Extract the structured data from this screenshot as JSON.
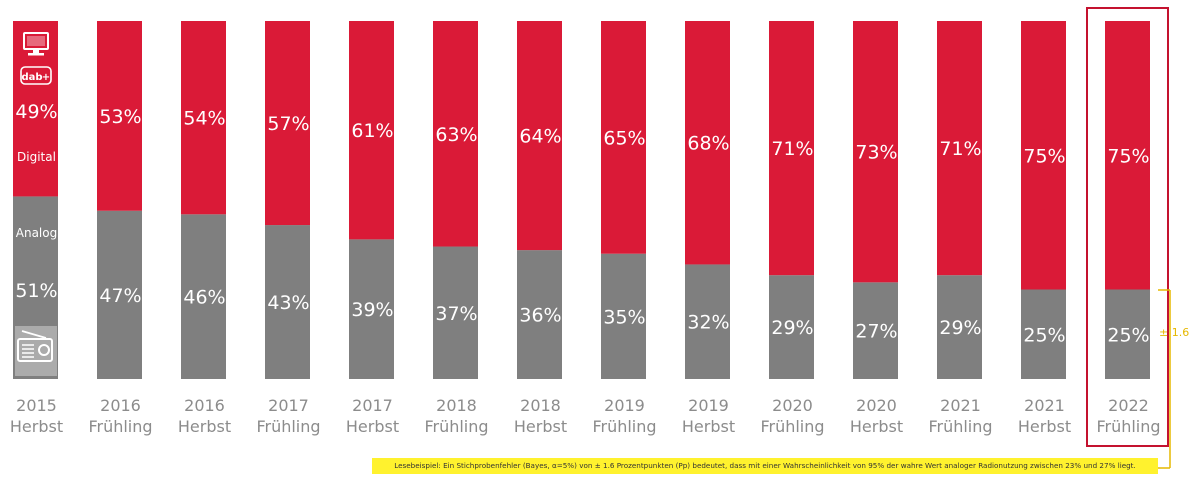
{
  "chart_data": {
    "type": "bar",
    "stacked": true,
    "categories": [
      [
        "2015",
        "Herbst"
      ],
      [
        "2016",
        "Frühling"
      ],
      [
        "2016",
        "Herbst"
      ],
      [
        "2017",
        "Frühling"
      ],
      [
        "2017",
        "Herbst"
      ],
      [
        "2018",
        "Frühling"
      ],
      [
        "2018",
        "Herbst"
      ],
      [
        "2019",
        "Frühling"
      ],
      [
        "2019",
        "Herbst"
      ],
      [
        "2020",
        "Frühling"
      ],
      [
        "2020",
        "Herbst"
      ],
      [
        "2021",
        "Frühling"
      ],
      [
        "2021",
        "Herbst"
      ],
      [
        "2022",
        "Frühling"
      ]
    ],
    "series": [
      {
        "name": "Analog",
        "color": "#7f7f7f",
        "values": [
          51,
          47,
          46,
          43,
          39,
          37,
          36,
          35,
          32,
          29,
          27,
          29,
          25,
          25
        ]
      },
      {
        "name": "Digital",
        "color": "#da1a37",
        "values": [
          49,
          53,
          54,
          57,
          61,
          63,
          64,
          65,
          68,
          71,
          73,
          71,
          75,
          75
        ]
      }
    ],
    "value_suffix": "%",
    "ylim": [
      0,
      100
    ],
    "highlight_category_index": 13,
    "highlight_color": "#c4122f",
    "error_annotation": {
      "text": "± 1.6",
      "color": "#e6b800"
    },
    "icons": {
      "digital": [
        "computer-icon",
        "dab-radio-icon"
      ],
      "analog": "radio-icon"
    },
    "grid": false,
    "legend": "none"
  },
  "footnote": "Lesebeispiel: Ein Stichprobenfehler (Bayes, α=5%) von ± 1.6 Prozentpunkten (Pp) bedeutet, dass mit einer Wahrscheinlichkeit von 95% der wahre Wert analoger Radionutzung zwischen 23% und 27% liegt."
}
